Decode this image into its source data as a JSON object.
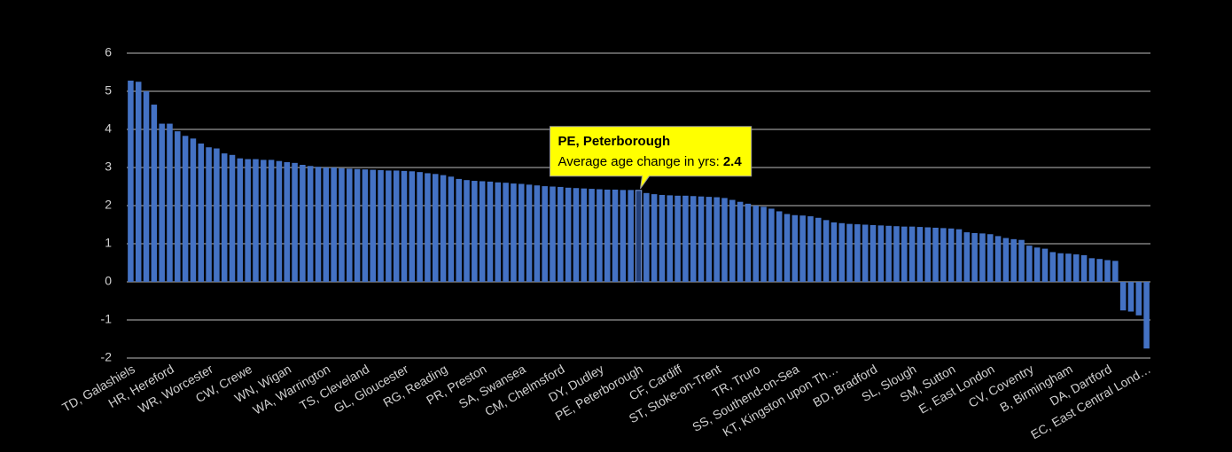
{
  "chart_data": {
    "type": "bar",
    "categories": [
      "TD, Galashiels",
      null,
      null,
      null,
      null,
      "HR, Hereford",
      null,
      null,
      null,
      null,
      "WR, Worcester",
      null,
      null,
      null,
      null,
      "CW, Crewe",
      null,
      null,
      null,
      null,
      "WN, Wigan",
      null,
      null,
      null,
      null,
      "WA, Warrington",
      null,
      null,
      null,
      null,
      "TS, Cleveland",
      null,
      null,
      null,
      null,
      "GL, Gloucester",
      null,
      null,
      null,
      null,
      "RG, Reading",
      null,
      null,
      null,
      null,
      "PR, Preston",
      null,
      null,
      null,
      null,
      "SA, Swansea",
      null,
      null,
      null,
      null,
      "CM, Chelmsford",
      null,
      null,
      null,
      null,
      "DY, Dudley",
      null,
      null,
      null,
      null,
      "PE, Peterborough",
      null,
      null,
      null,
      null,
      "CF, Cardiff",
      null,
      null,
      null,
      null,
      "ST, Stoke-on-Trent",
      null,
      null,
      null,
      null,
      "TR, Truro",
      null,
      null,
      null,
      null,
      "SS, Southend-on-Sea",
      null,
      null,
      null,
      null,
      "KT, Kingston upon Th…",
      null,
      null,
      null,
      null,
      "BD, Bradford",
      null,
      null,
      null,
      null,
      "SL, Slough",
      null,
      null,
      null,
      null,
      "SM, Sutton",
      null,
      null,
      null,
      null,
      "E, East London",
      null,
      null,
      null,
      null,
      "CV, Coventry",
      null,
      null,
      null,
      null,
      "B, Birmingham",
      null,
      null,
      null,
      null,
      "DA, Dartford",
      null,
      null,
      null,
      null,
      "EC, East Central Lond…"
    ],
    "values": [
      5.28,
      5.25,
      5.0,
      4.65,
      4.15,
      4.15,
      3.95,
      3.83,
      3.76,
      3.63,
      3.53,
      3.5,
      3.37,
      3.33,
      3.24,
      3.22,
      3.22,
      3.2,
      3.2,
      3.17,
      3.14,
      3.12,
      3.07,
      3.04,
      3.02,
      3.0,
      3.0,
      2.98,
      2.97,
      2.96,
      2.95,
      2.94,
      2.93,
      2.92,
      2.92,
      2.91,
      2.9,
      2.88,
      2.85,
      2.83,
      2.8,
      2.76,
      2.7,
      2.67,
      2.65,
      2.64,
      2.63,
      2.61,
      2.6,
      2.58,
      2.57,
      2.55,
      2.53,
      2.51,
      2.5,
      2.49,
      2.47,
      2.46,
      2.45,
      2.44,
      2.43,
      2.42,
      2.42,
      2.41,
      2.41,
      2.4,
      2.33,
      2.3,
      2.28,
      2.27,
      2.26,
      2.26,
      2.25,
      2.24,
      2.23,
      2.22,
      2.2,
      2.15,
      2.1,
      2.05,
      2.0,
      1.97,
      1.92,
      1.85,
      1.78,
      1.75,
      1.74,
      1.72,
      1.68,
      1.62,
      1.56,
      1.54,
      1.52,
      1.51,
      1.5,
      1.49,
      1.48,
      1.47,
      1.46,
      1.45,
      1.45,
      1.44,
      1.43,
      1.42,
      1.41,
      1.4,
      1.38,
      1.3,
      1.28,
      1.27,
      1.25,
      1.2,
      1.15,
      1.12,
      1.1,
      0.95,
      0.9,
      0.87,
      0.78,
      0.75,
      0.74,
      0.72,
      0.7,
      0.62,
      0.6,
      0.57,
      0.55,
      -0.75,
      -0.78,
      -0.88,
      -1.75
    ],
    "color": "#4472c4",
    "highlight_color": "#23407a",
    "ylim": [
      -2,
      6
    ],
    "yticks": [
      -2,
      -1,
      0,
      1,
      2,
      3,
      4,
      5,
      6
    ],
    "grid": true,
    "tooltip": {
      "index": 65,
      "label": "Average age change in yrs:"
    }
  }
}
